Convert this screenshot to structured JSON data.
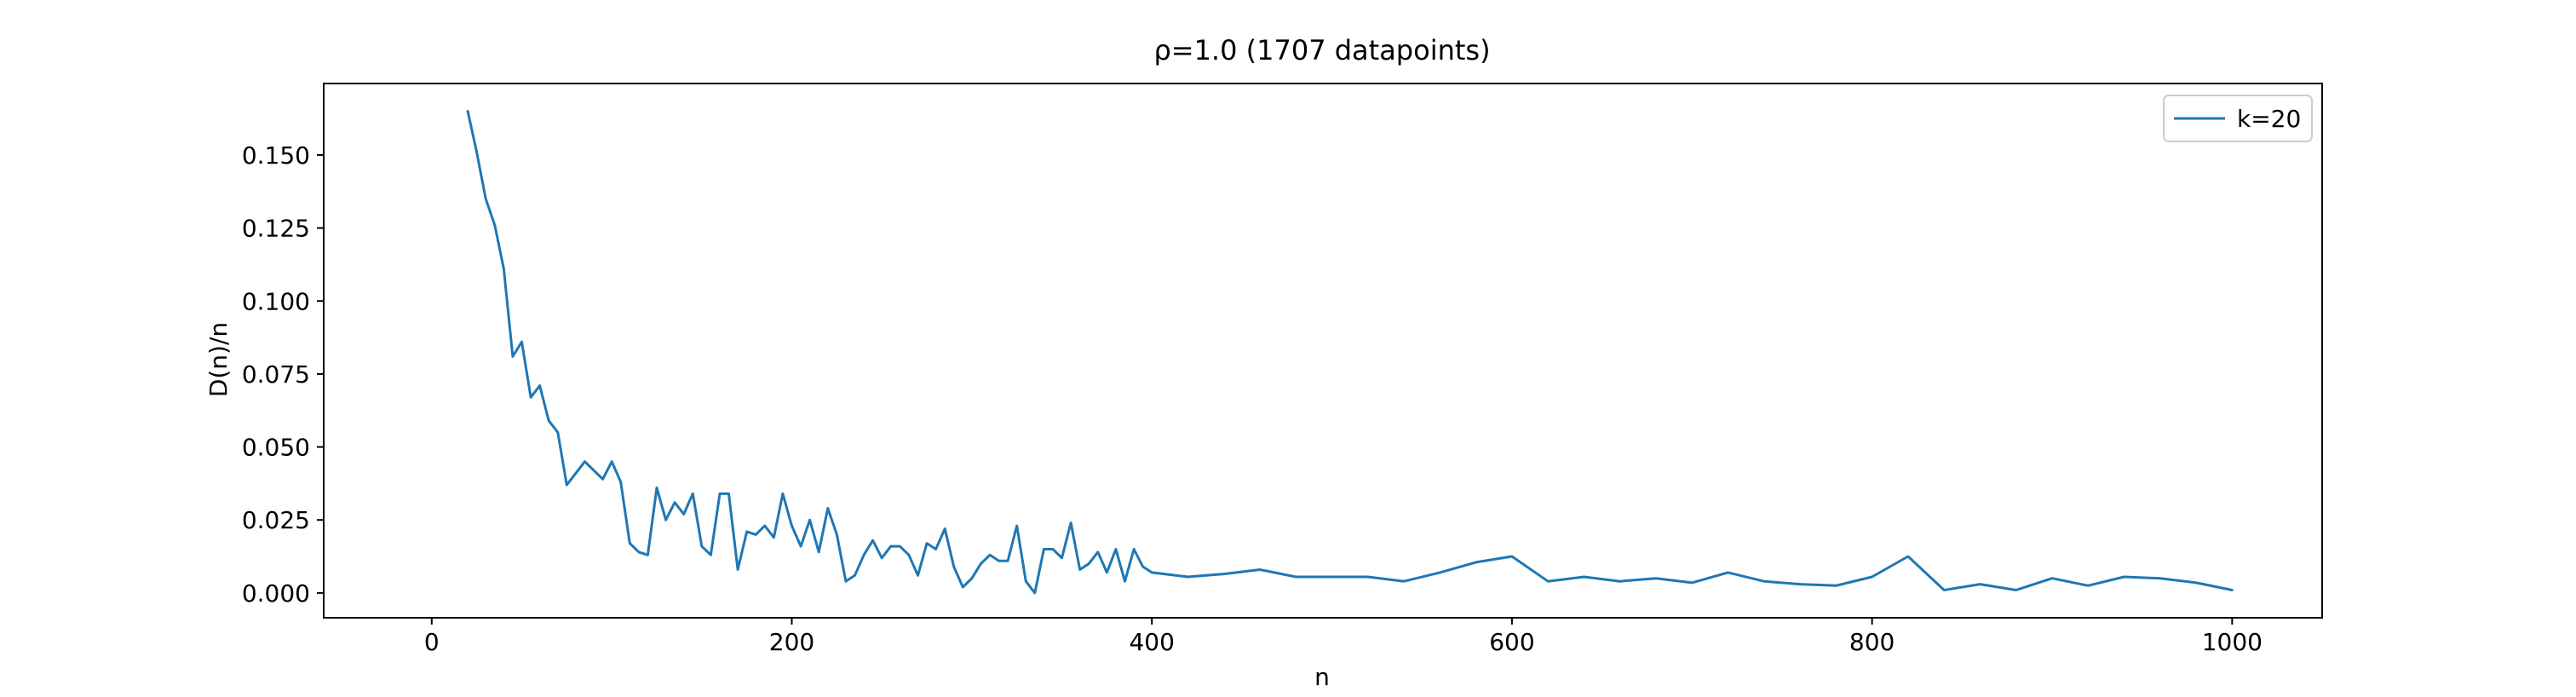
{
  "chart_data": {
    "type": "line",
    "title": "ρ=1.0 (1707 datapoints)",
    "xlabel": "n",
    "ylabel": "D(n)/n",
    "xlim": [
      -60,
      1050
    ],
    "ylim": [
      -0.0085,
      0.1745
    ],
    "xticks": [
      0,
      200,
      400,
      600,
      800,
      1000
    ],
    "xtick_labels": [
      "0",
      "200",
      "400",
      "600",
      "800",
      "1000"
    ],
    "yticks": [
      0.0,
      0.025,
      0.05,
      0.075,
      0.1,
      0.125,
      0.15
    ],
    "ytick_labels": [
      "0.000",
      "0.025",
      "0.050",
      "0.075",
      "0.100",
      "0.125",
      "0.150"
    ],
    "grid": false,
    "legend_position": "top-right",
    "series": [
      {
        "name": "k=20",
        "color": "#1f77b4",
        "x": [
          20,
          25,
          30,
          35,
          40,
          45,
          50,
          55,
          60,
          65,
          70,
          75,
          80,
          85,
          90,
          95,
          100,
          105,
          110,
          115,
          120,
          125,
          130,
          135,
          140,
          145,
          150,
          155,
          160,
          165,
          170,
          175,
          180,
          185,
          190,
          195,
          200,
          205,
          210,
          215,
          220,
          225,
          230,
          235,
          240,
          245,
          250,
          255,
          260,
          265,
          270,
          275,
          280,
          285,
          290,
          295,
          300,
          305,
          310,
          315,
          320,
          325,
          330,
          335,
          340,
          345,
          350,
          355,
          360,
          365,
          370,
          375,
          380,
          385,
          390,
          395,
          400,
          420,
          440,
          460,
          480,
          500,
          520,
          540,
          560,
          580,
          600,
          620,
          640,
          660,
          680,
          700,
          720,
          740,
          760,
          780,
          800,
          820,
          840,
          860,
          880,
          900,
          920,
          940,
          960,
          980,
          1000
        ],
        "y": [
          0.165,
          0.151,
          0.135,
          0.126,
          0.111,
          0.081,
          0.086,
          0.067,
          0.071,
          0.059,
          0.055,
          0.037,
          0.041,
          0.045,
          0.042,
          0.039,
          0.045,
          0.038,
          0.017,
          0.014,
          0.013,
          0.036,
          0.025,
          0.031,
          0.027,
          0.034,
          0.016,
          0.013,
          0.034,
          0.034,
          0.008,
          0.021,
          0.02,
          0.023,
          0.019,
          0.034,
          0.023,
          0.016,
          0.025,
          0.014,
          0.029,
          0.02,
          0.004,
          0.006,
          0.013,
          0.018,
          0.012,
          0.016,
          0.016,
          0.013,
          0.006,
          0.017,
          0.015,
          0.022,
          0.009,
          0.002,
          0.005,
          0.01,
          0.013,
          0.011,
          0.011,
          0.023,
          0.004,
          0.0,
          0.015,
          0.015,
          0.012,
          0.024,
          0.008,
          0.01,
          0.014,
          0.007,
          0.015,
          0.004,
          0.015,
          0.009,
          0.007,
          0.0055,
          0.0065,
          0.008,
          0.0055,
          0.0055,
          0.0055,
          0.004,
          0.007,
          0.0105,
          0.0125,
          0.004,
          0.0055,
          0.004,
          0.005,
          0.0035,
          0.007,
          0.004,
          0.003,
          0.0025,
          0.0055,
          0.0125,
          0.001,
          0.003,
          0.001,
          0.005,
          0.0025,
          0.0055,
          0.005,
          0.0035,
          0.001
        ]
      }
    ]
  }
}
